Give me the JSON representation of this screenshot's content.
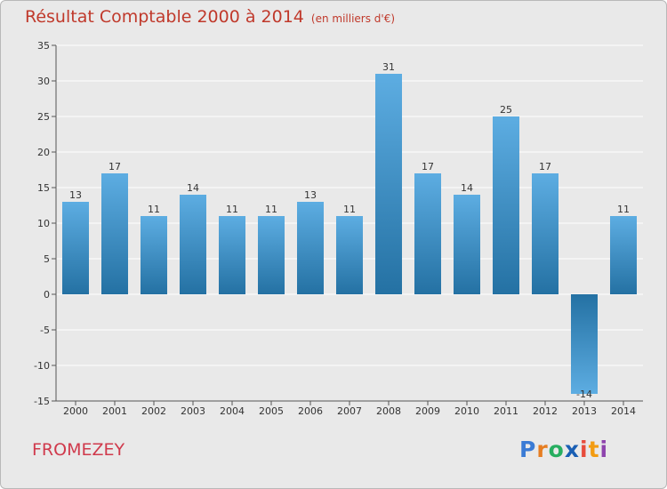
{
  "chart_data": {
    "type": "bar",
    "title": "Résultat Comptable 2000 à 2014",
    "subtitle": "(en milliers d'€)",
    "categories": [
      "2000",
      "2001",
      "2002",
      "2003",
      "2004",
      "2005",
      "2006",
      "2007",
      "2008",
      "2009",
      "2010",
      "2011",
      "2012",
      "2013",
      "2014"
    ],
    "values": [
      13,
      17,
      11,
      14,
      11,
      11,
      13,
      11,
      31,
      17,
      14,
      25,
      17,
      -14,
      11
    ],
    "ylim": [
      -15,
      35
    ],
    "yticks": [
      -15,
      -10,
      -5,
      0,
      5,
      10,
      15,
      20,
      25,
      30,
      35
    ],
    "xlabel": "",
    "ylabel": "",
    "grid": true
  },
  "footer": {
    "commune": "FROMEZEY",
    "logo_letters": [
      "P",
      "r",
      "o",
      "x",
      "i",
      "t",
      "i"
    ]
  },
  "colors": {
    "bar_light": "#5dade2",
    "bar_dark": "#2471a3",
    "grid": "#ffffff",
    "title": "#c0392b",
    "logo": [
      "#3a7bd5",
      "#e67e22",
      "#27ae60",
      "#1a5fb4",
      "#e74c3c",
      "#f39c12",
      "#8e44ad"
    ]
  }
}
